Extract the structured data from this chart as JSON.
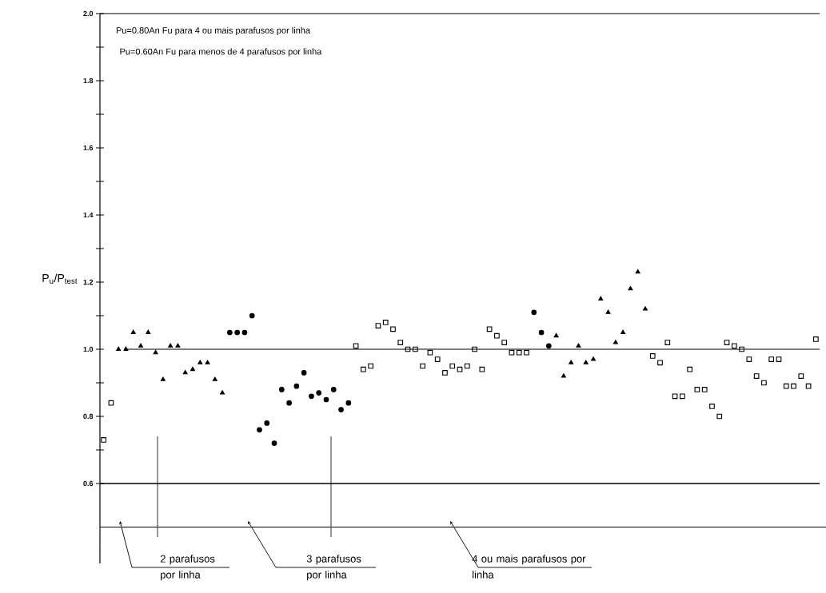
{
  "chart_data": {
    "type": "scatter",
    "ylabel": "P$_{u}$/P$_{test}$",
    "categories": [
      null,
      null,
      null,
      null,
      null,
      null,
      null,
      null,
      null,
      null,
      null,
      null,
      null,
      null,
      null,
      null,
      null,
      null,
      null,
      null,
      null,
      null,
      null,
      null,
      null,
      null,
      null,
      null,
      null,
      null,
      null,
      null,
      null,
      null,
      null,
      null,
      null,
      null,
      null,
      null,
      null,
      null,
      null,
      null,
      null,
      null,
      null,
      null,
      null,
      null,
      null,
      null,
      null,
      null,
      null,
      null,
      null,
      null,
      null,
      null,
      null,
      null,
      null,
      null,
      null,
      null,
      null,
      null,
      null,
      null,
      null,
      null,
      null,
      null,
      null,
      null,
      null,
      null,
      null,
      null,
      null,
      null,
      null,
      null,
      null,
      null,
      null,
      null,
      null,
      null,
      null,
      null,
      null,
      null,
      null,
      null,
      null
    ],
    "series": [
      {
        "color": "#000000",
        "marker": "triangle",
        "values": [
          null,
          null,
          1.0,
          1.0,
          1.05,
          1.01,
          1.05,
          0.99,
          0.91,
          1.01,
          1.01,
          0.93,
          0.94,
          0.96,
          0.96,
          0.91,
          0.87,
          null,
          null,
          null,
          null,
          null,
          null,
          null,
          null,
          null,
          null,
          null,
          null,
          null,
          null,
          null,
          null,
          null,
          null,
          null,
          null,
          null,
          null,
          null,
          null,
          null,
          null,
          null,
          null,
          null,
          null,
          null,
          null,
          null,
          null,
          null,
          null,
          null,
          null,
          null,
          null,
          null,
          null,
          null,
          null,
          1.04,
          0.92,
          0.96,
          1.01,
          0.96,
          0.97,
          1.15,
          1.11,
          1.02,
          1.05,
          1.18,
          1.23,
          1.12,
          null,
          null,
          null,
          null,
          null,
          null,
          null,
          null,
          null,
          null,
          null,
          null,
          null,
          null,
          null,
          null,
          null,
          null,
          null,
          null,
          null,
          null,
          null
        ]
      },
      {
        "color": "#000000",
        "marker": "circle",
        "values": [
          null,
          null,
          null,
          null,
          null,
          null,
          null,
          null,
          null,
          null,
          null,
          null,
          null,
          null,
          null,
          null,
          null,
          1.05,
          1.05,
          1.05,
          1.1,
          0.76,
          0.78,
          0.72,
          0.88,
          0.84,
          0.89,
          0.93,
          0.86,
          0.87,
          0.85,
          0.88,
          0.82,
          0.84,
          null,
          null,
          null,
          null,
          null,
          null,
          null,
          null,
          null,
          null,
          null,
          null,
          null,
          null,
          null,
          null,
          null,
          null,
          null,
          null,
          null,
          null,
          null,
          null,
          1.11,
          1.05,
          1.01,
          null,
          null,
          null,
          null,
          null,
          null,
          null,
          null,
          null,
          null,
          null,
          null,
          null,
          null,
          null,
          null,
          null,
          null,
          null,
          null,
          null,
          null,
          null,
          null,
          null,
          null,
          null,
          null,
          null,
          null,
          null,
          null,
          null,
          null,
          null,
          null
        ]
      },
      {
        "color": "#000000",
        "marker": "square",
        "values": [
          0.73,
          0.84,
          null,
          null,
          null,
          null,
          null,
          null,
          null,
          null,
          null,
          null,
          null,
          null,
          null,
          null,
          null,
          null,
          null,
          null,
          null,
          null,
          null,
          null,
          null,
          null,
          null,
          null,
          null,
          null,
          null,
          null,
          null,
          null,
          1.01,
          0.94,
          0.95,
          1.07,
          1.08,
          1.06,
          1.02,
          1.0,
          1.0,
          0.95,
          0.99,
          0.97,
          0.93,
          0.95,
          0.94,
          0.95,
          1.0,
          0.94,
          1.06,
          1.04,
          1.02,
          0.99,
          0.99,
          0.99,
          null,
          null,
          null,
          null,
          null,
          null,
          null,
          null,
          null,
          null,
          null,
          null,
          null,
          null,
          null,
          null,
          0.98,
          0.96,
          1.02,
          0.86,
          0.86,
          0.94,
          0.88,
          0.88,
          0.83,
          0.8,
          1.02,
          1.01,
          1.0,
          0.97,
          0.92,
          0.9,
          0.97,
          0.97,
          0.89,
          0.89,
          0.92,
          0.89,
          1.03
        ]
      }
    ],
    "ylim": [
      0.42,
      2.0
    ],
    "yticks": [
      {
        "value": 0.6,
        "label": "0.6"
      },
      {
        "value": 0.7,
        "label": null
      },
      {
        "value": 0.8,
        "label": "0.8"
      },
      {
        "value": 0.9,
        "label": null
      },
      {
        "value": 1.0,
        "label": "1.0"
      },
      {
        "value": 1.1,
        "label": null
      },
      {
        "value": 1.2,
        "label": "1.2"
      },
      {
        "value": 1.3,
        "label": null
      },
      {
        "value": 1.4,
        "label": "1.4"
      },
      {
        "value": 1.5,
        "label": null
      },
      {
        "value": 1.6,
        "label": "1.6"
      },
      {
        "value": 1.7,
        "label": null
      },
      {
        "value": 1.8,
        "label": "1.8"
      },
      {
        "value": 1.9,
        "label": null
      },
      {
        "value": 2.0,
        "label": "2.0"
      }
    ],
    "tick_labels": "y",
    "ref_lines": [
      {
        "axis": "y",
        "value": 1.0,
        "label": null
      },
      {
        "axis": "y",
        "value": 0.6,
        "label": null
      },
      {
        "axis": "y",
        "value": 0.47,
        "label": null
      }
    ],
    "annotations": [
      "Pu=0.80An Fu para 4 ou mais parafusos por linha",
      "Pu=0.60An Fu para menos de 4 parafusos por linha",
      "2 parafusos por linha",
      "3 parafusos por linha",
      "4 ou mais parafusos por linha"
    ],
    "grid": false,
    "legend": false
  }
}
